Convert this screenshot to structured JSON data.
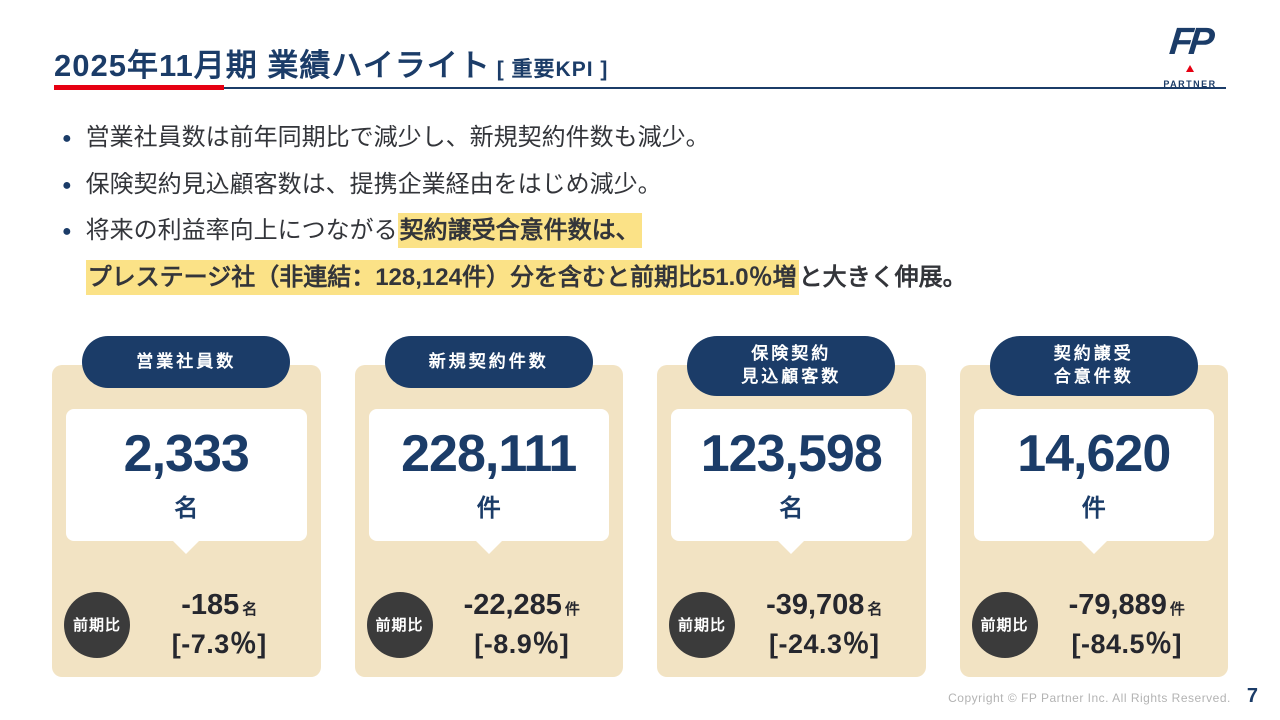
{
  "header": {
    "title": "2025年11月期 業績ハイライト",
    "subtitle": "[ 重要KPI ]",
    "logo_text": "FP",
    "logo_sub": "PARTNER"
  },
  "bullets": {
    "b1": "営業社員数は前年同期比で減少し、新規契約件数も減少。",
    "b2": "保険契約見込顧客数は、提携企業経由をはじめ減少。",
    "b3_normal1": "将来の利益率向上につながる",
    "b3_highlight1": "契約譲受合意件数は、",
    "b3_highlight2": "プレステージ社（非連結：128,124件）分を含むと前期比51.0％増",
    "b3_normal2": "と大きく伸展。"
  },
  "cards": [
    {
      "label_lines": [
        "営業社員数"
      ],
      "value": "2,333",
      "unit": "名",
      "badge": "前期比",
      "change": "-185",
      "change_unit": "名",
      "change_pct": "[-7.3％]"
    },
    {
      "label_lines": [
        "新規契約件数"
      ],
      "value": "228,111",
      "unit": "件",
      "badge": "前期比",
      "change": "-22,285",
      "change_unit": "件",
      "change_pct": "[-8.9％]"
    },
    {
      "label_lines": [
        "保険契約",
        "見込顧客数"
      ],
      "value": "123,598",
      "unit": "名",
      "badge": "前期比",
      "change": "-39,708",
      "change_unit": "名",
      "change_pct": "[-24.3％]"
    },
    {
      "label_lines": [
        "契約譲受",
        "合意件数"
      ],
      "value": "14,620",
      "unit": "件",
      "badge": "前期比",
      "change": "-79,889",
      "change_unit": "件",
      "change_pct": "[-84.5％]"
    }
  ],
  "footer": {
    "copyright": "Copyright © FP Partner Inc. All Rights Reserved.",
    "page": "7"
  },
  "colors": {
    "navy": "#1b3c68",
    "red": "#e60012",
    "highlight_yellow": "#fbe287",
    "card_beige": "#f2e3c3",
    "badge_dark": "#3b3b3b"
  }
}
